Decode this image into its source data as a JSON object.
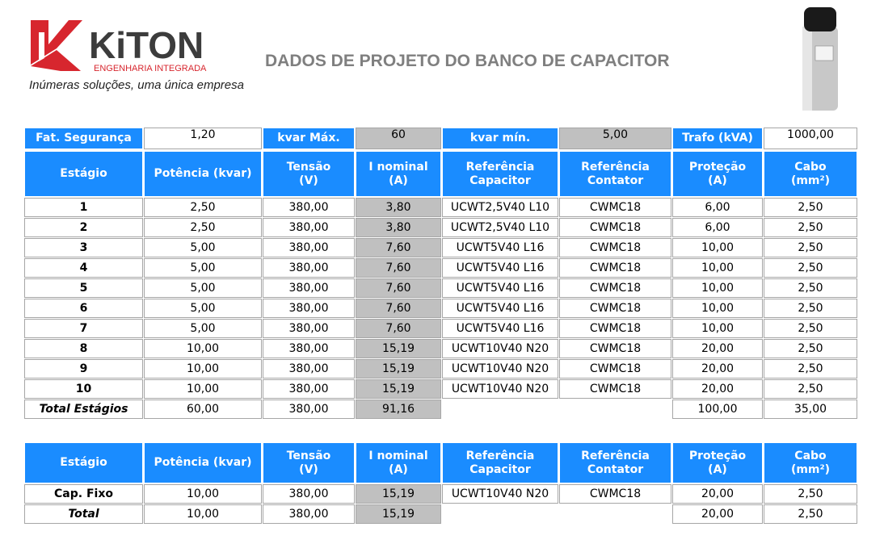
{
  "logo": {
    "name": "KiTON",
    "subtitle": "ENGENHARIA INTEGRADA",
    "tagline": "Inúmeras soluções, uma única empresa"
  },
  "title": "DADOS DE PROJETO DO BANCO DE CAPACITOR",
  "params": [
    {
      "label": "Fat. Segurança",
      "value": "1,20"
    },
    {
      "label": "kvar Máx.",
      "value": "60"
    },
    {
      "label": "kvar mín.",
      "value": "5,00"
    },
    {
      "label": "Trafo (kVA)",
      "value": "1000,00"
    }
  ],
  "table": {
    "headers": [
      "Estágio",
      "Potência (kvar)",
      "Tensão\n(V)",
      "I nominal\n(A)",
      "Referência\nCapacitor",
      "Referência\nContator",
      "Proteção\n(A)",
      "Cabo\n(mm²)"
    ],
    "rows": [
      [
        "1",
        "2,50",
        "380,00",
        "3,80",
        "UCWT2,5V40 L10",
        "CWMC18",
        "6,00",
        "2,50"
      ],
      [
        "2",
        "2,50",
        "380,00",
        "3,80",
        "UCWT2,5V40 L10",
        "CWMC18",
        "6,00",
        "2,50"
      ],
      [
        "3",
        "5,00",
        "380,00",
        "7,60",
        "UCWT5V40 L16",
        "CWMC18",
        "10,00",
        "2,50"
      ],
      [
        "4",
        "5,00",
        "380,00",
        "7,60",
        "UCWT5V40 L16",
        "CWMC18",
        "10,00",
        "2,50"
      ],
      [
        "5",
        "5,00",
        "380,00",
        "7,60",
        "UCWT5V40 L16",
        "CWMC18",
        "10,00",
        "2,50"
      ],
      [
        "6",
        "5,00",
        "380,00",
        "7,60",
        "UCWT5V40 L16",
        "CWMC18",
        "10,00",
        "2,50"
      ],
      [
        "7",
        "5,00",
        "380,00",
        "7,60",
        "UCWT5V40 L16",
        "CWMC18",
        "10,00",
        "2,50"
      ],
      [
        "8",
        "10,00",
        "380,00",
        "15,19",
        "UCWT10V40 N20",
        "CWMC18",
        "20,00",
        "2,50"
      ],
      [
        "9",
        "10,00",
        "380,00",
        "15,19",
        "UCWT10V40 N20",
        "CWMC18",
        "20,00",
        "2,50"
      ],
      [
        "10",
        "10,00",
        "380,00",
        "15,19",
        "UCWT10V40 N20",
        "CWMC18",
        "20,00",
        "2,50"
      ]
    ],
    "total": {
      "label": "Total Estágios",
      "potencia": "60,00",
      "tensao": "380,00",
      "inominal": "91,16",
      "protecao": "100,00",
      "cabo": "35,00"
    }
  },
  "table2": {
    "headers": [
      "Estágio",
      "Potência (kvar)",
      "Tensão\n(V)",
      "I nominal\n(A)",
      "Referência\nCapacitor",
      "Referência\nContator",
      "Proteção\n(A)",
      "Cabo\n(mm²)"
    ],
    "rows": [
      [
        "Cap. Fixo",
        "10,00",
        "380,00",
        "15,19",
        "UCWT10V40 N20",
        "CWMC18",
        "20,00",
        "2,50"
      ]
    ],
    "total": {
      "label": "Total",
      "potencia": "10,00",
      "tensao": "380,00",
      "inominal": "15,19",
      "protecao": "20,00",
      "cabo": "2,50"
    }
  }
}
